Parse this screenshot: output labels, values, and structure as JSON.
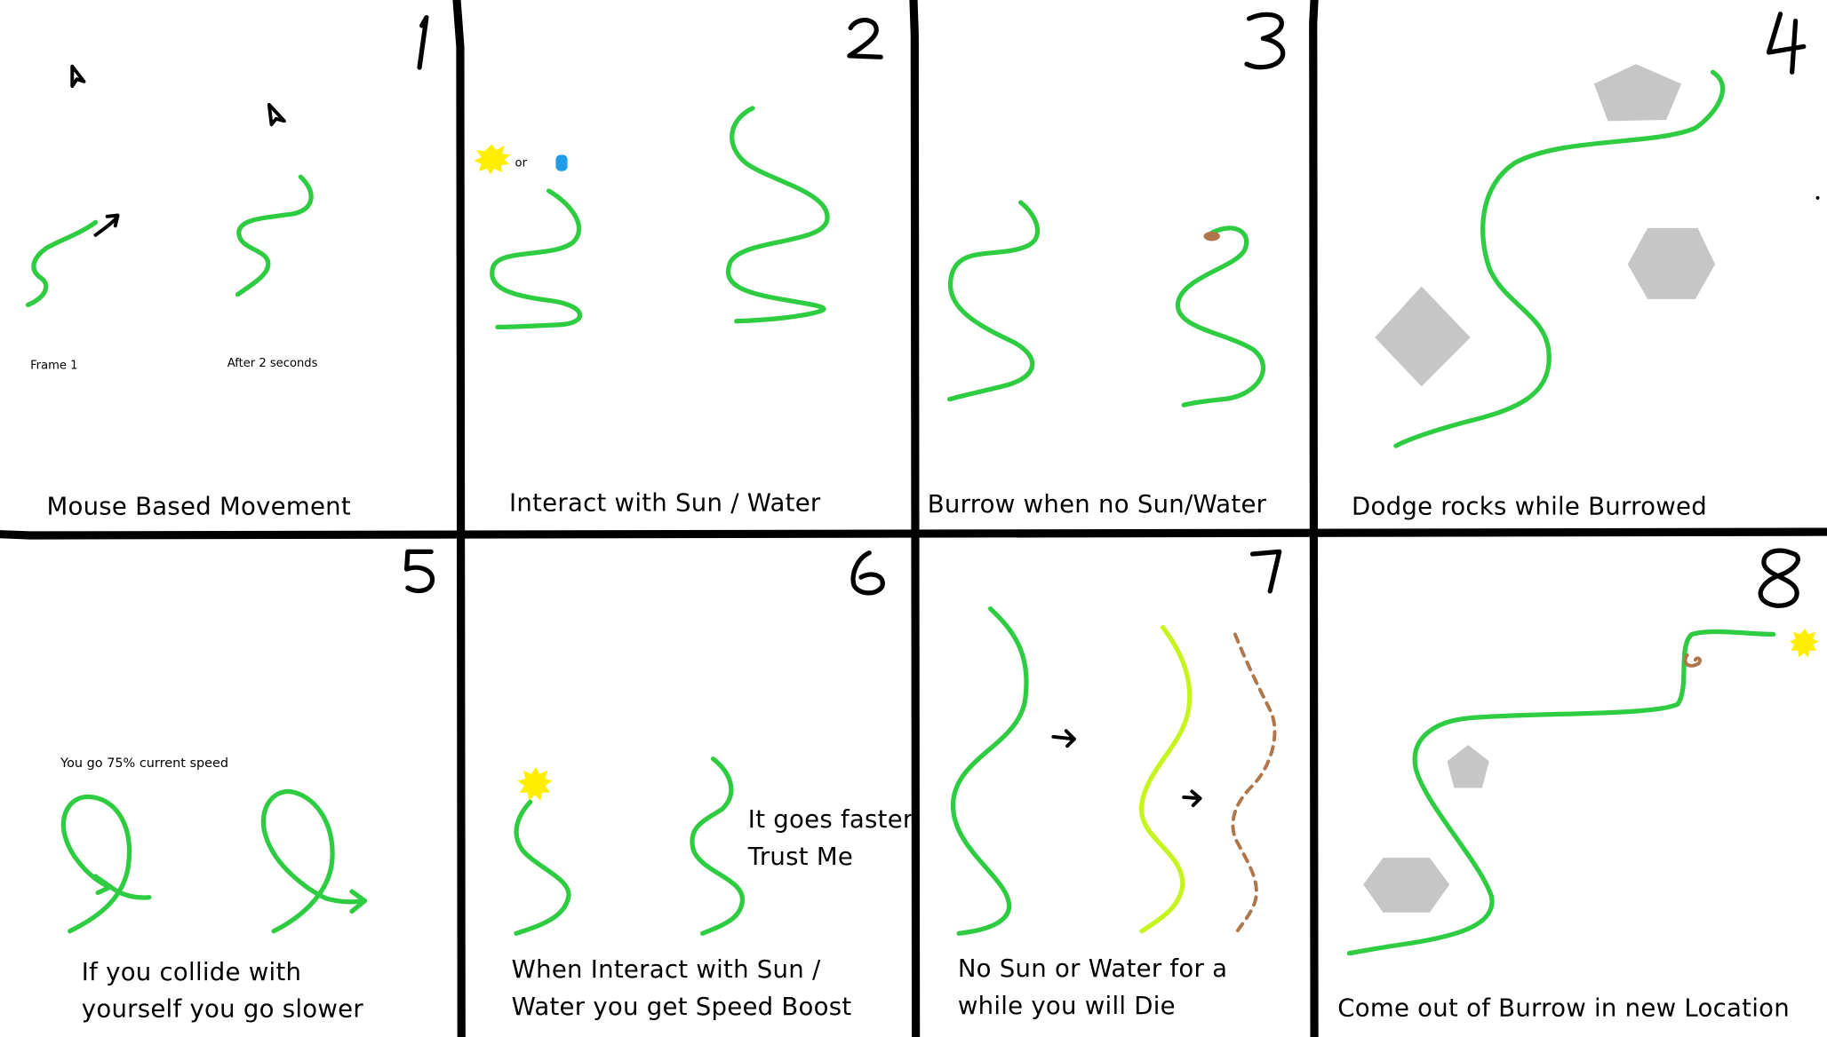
{
  "colors": {
    "worm": "#2ecc40",
    "worm_dying": "#c6f51e",
    "dirt": "#b0764a",
    "rock": "#c6c6c6",
    "sun": "#ffee00",
    "water": "#1f9ce8",
    "ink": "#000000"
  },
  "panels": [
    {
      "number": "1",
      "caption": "Mouse Based Movement",
      "labels": {
        "frame1": "Frame 1",
        "after": "After 2 seconds"
      }
    },
    {
      "number": "2",
      "caption": "Interact with Sun / Water",
      "labels": {
        "or": "or"
      }
    },
    {
      "number": "3",
      "caption": "Burrow when no Sun/Water"
    },
    {
      "number": "4",
      "caption": "Dodge rocks while Burrowed"
    },
    {
      "number": "5",
      "caption_line1": "If you collide with",
      "caption_line2": "yourself you go slower",
      "labels": {
        "speed": "You go  75% current speed"
      }
    },
    {
      "number": "6",
      "caption_line1": "When Interact with Sun /",
      "caption_line2": "Water you get Speed Boost",
      "labels": {
        "faster": "It goes faster",
        "trust": "Trust Me"
      }
    },
    {
      "number": "7",
      "caption_line1": "No Sun or Water for a",
      "caption_line2": "while you will Die"
    },
    {
      "number": "8",
      "caption": "Come out of Burrow in new Location"
    }
  ]
}
